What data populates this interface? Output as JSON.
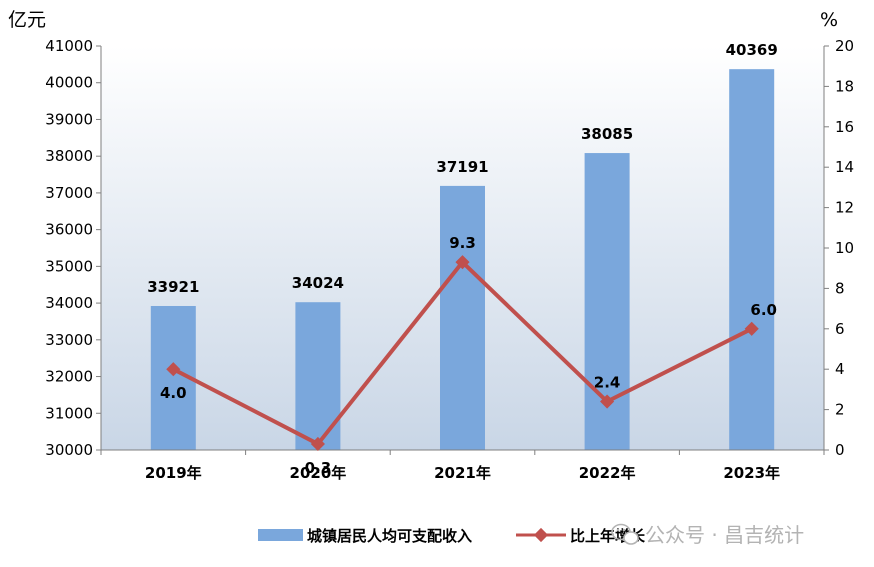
{
  "chart_data": {
    "type": "bar+line",
    "categories": [
      "2019年",
      "2020年",
      "2021年",
      "2022年",
      "2023年"
    ],
    "series": [
      {
        "name": "城镇居民人均可支配收入",
        "type": "bar",
        "axis": "left",
        "values": [
          33921,
          34024,
          37191,
          38085,
          40369
        ],
        "labels": [
          "33921",
          "34024",
          "37191",
          "38085",
          "40369"
        ],
        "color": "#7aa7dc"
      },
      {
        "name": "比上年增长",
        "type": "line",
        "axis": "right",
        "values": [
          4.0,
          0.3,
          9.3,
          2.4,
          6.0
        ],
        "labels": [
          "4.0",
          "0.3",
          "9.3",
          "2.4",
          "6.0"
        ],
        "color": "#c0504d"
      }
    ],
    "y_left": {
      "unit": "亿元",
      "range": [
        30000,
        41000
      ],
      "ticks": [
        "30000",
        "31000",
        "32000",
        "33000",
        "34000",
        "35000",
        "36000",
        "37000",
        "38000",
        "39000",
        "40000",
        "41000"
      ]
    },
    "y_right": {
      "unit": "%",
      "range": [
        0,
        20
      ],
      "ticks": [
        "0",
        "2",
        "4",
        "6",
        "8",
        "10",
        "12",
        "14",
        "16",
        "18",
        "20"
      ]
    },
    "legend_position": "bottom"
  },
  "watermark": {
    "icon": "wechat-icon",
    "text": "公众号 · 昌吉统计"
  }
}
